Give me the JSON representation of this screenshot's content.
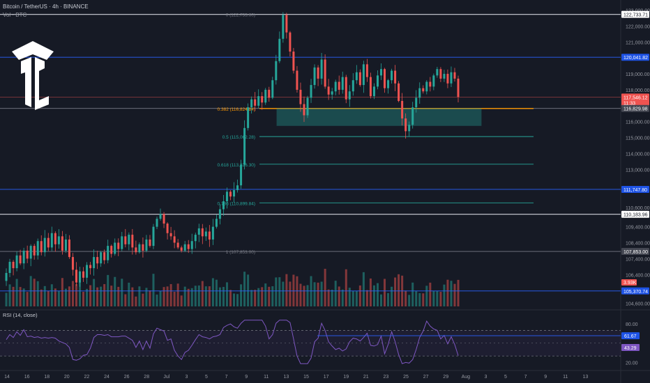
{
  "header": {
    "symbol": "Bitcoin / TetherUS · 4h · BINANCE",
    "volume_label": "Vol · BTC"
  },
  "colors": {
    "background": "#161a25",
    "up": "#26a69a",
    "down": "#ef5350",
    "rsi_line": "#7e57c2",
    "fib_teal": "#26a69a",
    "fib_orange": "#ff9800",
    "blue_level": "#2962ff",
    "white_level": "#d1d4dc"
  },
  "chart_data": [
    {
      "type": "candlestick",
      "title": "",
      "y_axis_ticks": [
        "123,000.00",
        "122,000.00",
        "121,000.00",
        "119,000.00",
        "118,000.00",
        "116,000.00",
        "115,000.00",
        "114,000.00",
        "113,000.00",
        "110,600.00",
        "109,400.00",
        "108,400.00",
        "107,400.00",
        "106,400.00",
        "104,600.00"
      ],
      "y_axis_tick_values": [
        123000,
        122000,
        121000,
        119000,
        118000,
        116000,
        115000,
        114000,
        113000,
        110600,
        109400,
        108400,
        107400,
        106400,
        104600
      ],
      "x_axis_ticks": [
        "14",
        "16",
        "18",
        "20",
        "22",
        "24",
        "26",
        "28",
        "Jul",
        "3",
        "5",
        "7",
        "9",
        "11",
        "13",
        "15",
        "17",
        "19",
        "21",
        "23",
        "25",
        "27",
        "29",
        "Aug",
        "3",
        "5",
        "7",
        "9",
        "11",
        "13"
      ],
      "ylim": [
        104400,
        123200
      ],
      "levels": [
        {
          "label": "122,733.71",
          "value": 122733.71,
          "style": "white"
        },
        {
          "label": "120,041.82",
          "value": 120041.82,
          "style": "blue"
        },
        {
          "label": "117,546.12",
          "value": 117546.12,
          "style": "current",
          "sublabel": "11:33"
        },
        {
          "label": "116,829.98",
          "value": 116829.98,
          "style": "gray"
        },
        {
          "label": "111,747.80",
          "value": 111747.8,
          "style": "blue"
        },
        {
          "label": "110,183.96",
          "value": 110183.96,
          "style": "white"
        },
        {
          "label": "107,853.00",
          "value": 107853,
          "style": "gray"
        },
        {
          "label": "105,370.74",
          "value": 105370.74,
          "style": "blue"
        }
      ],
      "fib_levels": [
        {
          "label": "0 (122,733.60)",
          "value": 122733.6
        },
        {
          "label": "0.382 (116,824.84)",
          "value": 116824.84
        },
        {
          "label": "0.5 (115,062.28)",
          "value": 115062.28
        },
        {
          "label": "0.618 (113,326.30)",
          "value": 113326.3
        },
        {
          "label": "0.786 (110,899.84)",
          "value": 110899.84
        },
        {
          "label": "1 (107,853.00)",
          "value": 107853
        }
      ],
      "volume_badge": "3.93K",
      "close_series": [
        106000,
        106500,
        107200,
        106800,
        107600,
        107100,
        107900,
        107400,
        108200,
        107600,
        108500,
        107800,
        108700,
        108100,
        109000,
        108300,
        108800,
        107900,
        108600,
        107500,
        106700,
        105900,
        106600,
        106200,
        107000,
        106800,
        107500,
        107100,
        107800,
        107300,
        108200,
        107700,
        108400,
        108000,
        108800,
        108300,
        108900,
        108100,
        107800,
        108300,
        107900,
        108600,
        108200,
        109400,
        109900,
        110200,
        109600,
        109000,
        108800,
        108400,
        108100,
        107900,
        108300,
        108000,
        108500,
        108900,
        109300,
        108800,
        109100,
        108600,
        109400,
        109900,
        110500,
        111000,
        111600,
        111300,
        111700,
        112000,
        113300,
        115600,
        116900,
        117400,
        117000,
        117600,
        117200,
        118000,
        117500,
        118600,
        119800,
        121200,
        122700,
        121600,
        120400,
        119200,
        118000,
        117100,
        116400,
        117500,
        118300,
        119400,
        118700,
        119900,
        118200,
        117700,
        117900,
        118500,
        118000,
        118800,
        117400,
        117900,
        118600,
        119100,
        118300,
        119600,
        118800,
        117600,
        118200,
        118900,
        119300,
        118100,
        118600,
        119200,
        118400,
        117300,
        116200,
        115400,
        115800,
        116900,
        117500,
        118100,
        117900,
        118500,
        118200,
        118900,
        119300,
        118700,
        119000,
        118400,
        119100,
        118700,
        117546
      ]
    },
    {
      "type": "line",
      "title": "RSI (14, close)",
      "y_axis_ticks": [
        "80.00",
        "20.00"
      ],
      "y_axis_tick_values": [
        80,
        20
      ],
      "ylim": [
        15,
        90
      ],
      "bands": [
        70,
        30
      ],
      "labels": [
        {
          "label": "61.67",
          "value": 61.67
        },
        {
          "label": "43.29",
          "value": 43.29
        }
      ]
    }
  ]
}
